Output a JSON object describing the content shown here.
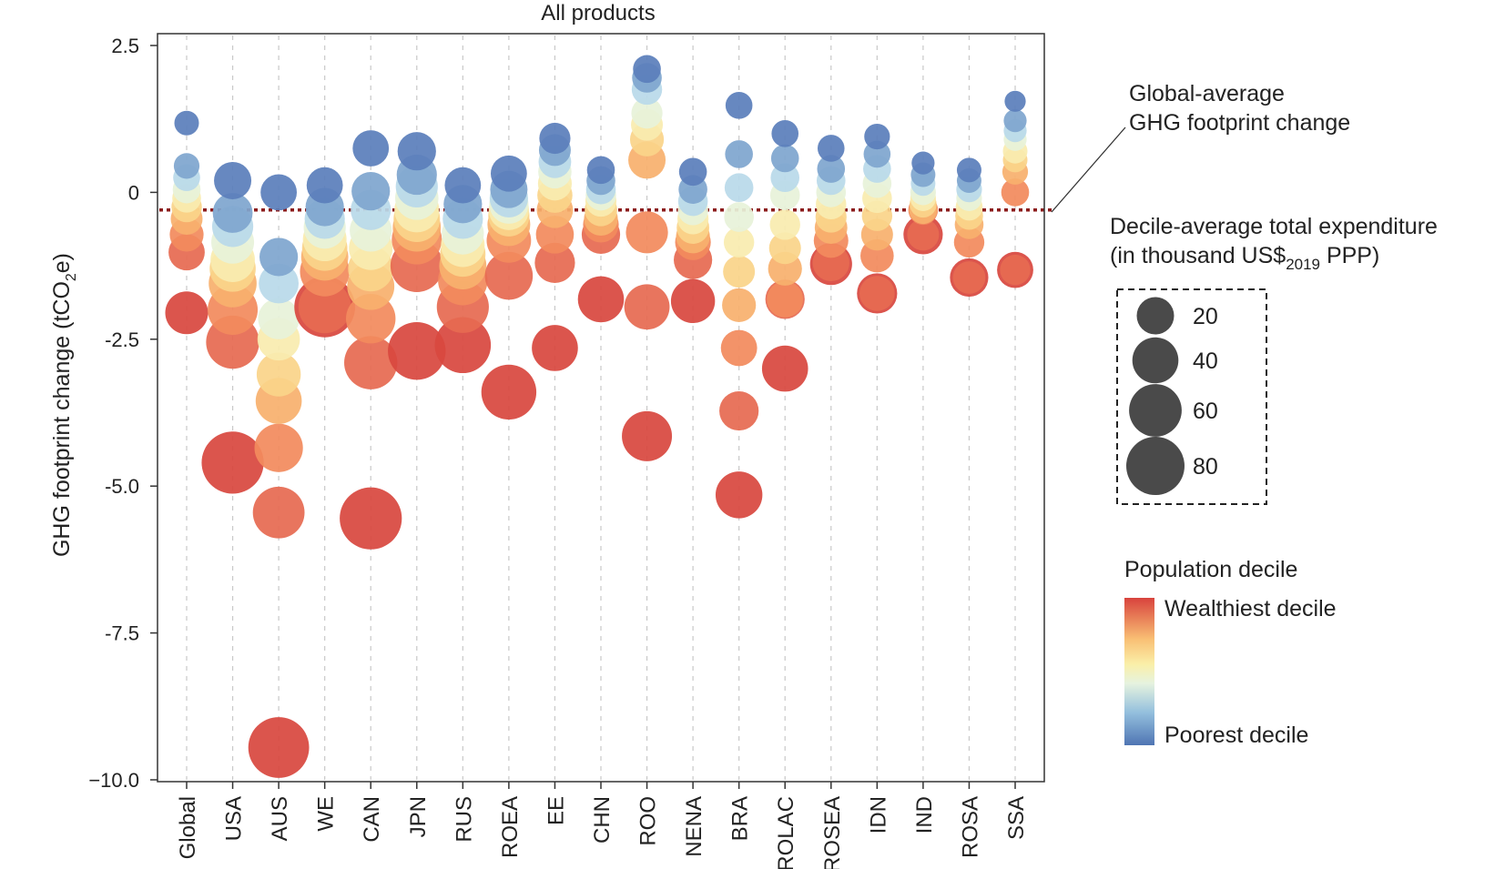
{
  "chart_data": {
    "type": "scatter",
    "title": "All products",
    "ylabel": "GHG footprint change (tCO",
    "ylabel_sub": "2",
    "ylabel_end": "e)",
    "ylim": [
      -10.0,
      2.5
    ],
    "yticks": [
      2.5,
      0,
      -2.5,
      -5.0,
      -7.5,
      -10.0
    ],
    "ytick_labels": [
      "2.5",
      "0",
      "-2.5",
      "-5.0",
      "-7.5",
      "−10.0"
    ],
    "categories": [
      "Global",
      "USA",
      "AUS",
      "WE",
      "CAN",
      "JPN",
      "RUS",
      "ROEA",
      "EE",
      "CHN",
      "ROO",
      "NENA",
      "BRA",
      "ROLAC",
      "ROSEA",
      "IDN",
      "IND",
      "ROSA",
      "SSA"
    ],
    "global_average": -0.3,
    "decile_colors": [
      "#5b7fbb",
      "#7fa6cf",
      "#b9d9ea",
      "#e7f2d9",
      "#f9ecaf",
      "#fad48a",
      "#f7b06e",
      "#f28b5e",
      "#e66a52",
      "#d8483f"
    ],
    "series": [
      {
        "category": "Global",
        "values": [
          1.18,
          0.45,
          0.25,
          0.05,
          -0.1,
          -0.25,
          -0.45,
          -0.72,
          -1.02,
          -2.05
        ],
        "expenditure": [
          3,
          4,
          5,
          6,
          7,
          9,
          11,
          14,
          18,
          32
        ]
      },
      {
        "category": "USA",
        "values": [
          0.2,
          -0.35,
          -0.58,
          -0.85,
          -1.15,
          -1.3,
          -1.55,
          -2.0,
          -2.55,
          -4.6
        ],
        "expenditure": [
          20,
          25,
          28,
          32,
          36,
          40,
          45,
          52,
          62,
          95
        ]
      },
      {
        "category": "AUS",
        "values": [
          0.0,
          -1.1,
          -1.55,
          -2.15,
          -2.5,
          -3.1,
          -3.55,
          -4.35,
          -5.45,
          -9.45
        ],
        "expenditure": [
          18,
          22,
          25,
          28,
          31,
          35,
          40,
          47,
          57,
          90
        ]
      },
      {
        "category": "WE",
        "values": [
          0.12,
          -0.25,
          -0.45,
          -0.6,
          -0.8,
          -0.95,
          -1.1,
          -1.35,
          -1.95,
          -1.95
        ],
        "expenditure": [
          18,
          22,
          26,
          30,
          34,
          38,
          43,
          50,
          60,
          90
        ]
      },
      {
        "category": "CAN",
        "values": [
          0.75,
          0.02,
          -0.3,
          -0.65,
          -0.95,
          -1.3,
          -1.6,
          -2.15,
          -2.9,
          -5.55
        ],
        "expenditure": [
          18,
          22,
          26,
          30,
          34,
          38,
          43,
          50,
          62,
          95
        ]
      },
      {
        "category": "JPN",
        "values": [
          0.7,
          0.3,
          0.1,
          -0.1,
          -0.3,
          -0.45,
          -0.6,
          -0.8,
          -1.25,
          -2.7
        ],
        "expenditure": [
          22,
          26,
          30,
          33,
          37,
          41,
          46,
          52,
          60,
          78
        ]
      },
      {
        "category": "RUS",
        "values": [
          0.12,
          -0.2,
          -0.45,
          -0.7,
          -0.9,
          -1.05,
          -1.25,
          -1.5,
          -1.95,
          -2.6
        ],
        "expenditure": [
          18,
          22,
          26,
          30,
          34,
          38,
          43,
          50,
          58,
          72
        ]
      },
      {
        "category": "ROEA",
        "values": [
          0.32,
          0.05,
          -0.1,
          -0.2,
          -0.3,
          -0.4,
          -0.55,
          -0.82,
          -1.42,
          -3.4
        ],
        "expenditure": [
          18,
          20,
          22,
          24,
          26,
          28,
          32,
          36,
          45,
          68
        ]
      },
      {
        "category": "EE",
        "values": [
          0.92,
          0.72,
          0.52,
          0.35,
          0.15,
          -0.05,
          -0.3,
          -0.72,
          -1.2,
          -2.65
        ],
        "expenditure": [
          10,
          11,
          12,
          13,
          14,
          16,
          18,
          21,
          26,
          40
        ]
      },
      {
        "category": "CHN",
        "values": [
          0.38,
          0.2,
          0.05,
          -0.05,
          -0.15,
          -0.3,
          -0.45,
          -0.55,
          -0.72,
          -1.82
        ],
        "expenditure": [
          6,
          7,
          8,
          9,
          10,
          12,
          14,
          17,
          22,
          40
        ]
      },
      {
        "category": "ROO",
        "values": [
          2.1,
          1.95,
          1.75,
          1.35,
          1.15,
          0.9,
          0.55,
          -0.68,
          -1.95,
          -4.15
        ],
        "expenditure": [
          6,
          8,
          9,
          10,
          11,
          14,
          20,
          30,
          38,
          52
        ]
      },
      {
        "category": "NENA",
        "values": [
          0.35,
          0.05,
          -0.15,
          -0.3,
          -0.45,
          -0.6,
          -0.75,
          -0.85,
          -1.15,
          -1.85
        ],
        "expenditure": [
          6,
          7,
          8,
          9,
          10,
          12,
          14,
          17,
          22,
          35
        ]
      },
      {
        "category": "BRA",
        "values": [
          1.48,
          0.65,
          0.08,
          -0.42,
          -0.85,
          -1.35,
          -1.92,
          -2.65,
          -3.72,
          -5.15
        ],
        "expenditure": [
          5,
          6,
          7,
          8,
          9,
          11,
          14,
          18,
          24,
          42
        ]
      },
      {
        "category": "ROLAC",
        "values": [
          1.0,
          0.58,
          0.25,
          -0.05,
          -0.55,
          -0.95,
          -1.3,
          -1.82,
          -1.82,
          -3.0
        ],
        "expenditure": [
          5,
          6,
          7,
          8,
          9,
          11,
          14,
          18,
          24,
          40
        ]
      },
      {
        "category": "ROSEA",
        "values": [
          0.75,
          0.4,
          0.2,
          0.0,
          -0.2,
          -0.42,
          -0.6,
          -0.82,
          -1.2,
          -1.22
        ],
        "expenditure": [
          5,
          6,
          7,
          8,
          9,
          10,
          12,
          15,
          19,
          30
        ]
      },
      {
        "category": "IDN",
        "values": [
          0.95,
          0.65,
          0.4,
          0.15,
          -0.1,
          -0.4,
          -0.72,
          -1.08,
          -1.72,
          -1.72
        ],
        "expenditure": [
          4,
          5,
          6,
          7,
          8,
          9,
          11,
          13,
          16,
          26
        ]
      },
      {
        "category": "IND",
        "values": [
          0.5,
          0.3,
          0.15,
          0.0,
          -0.1,
          -0.2,
          -0.3,
          -0.3,
          -0.72,
          -0.72
        ],
        "expenditure": [
          2,
          3,
          3,
          4,
          4,
          5,
          6,
          8,
          11,
          24
        ]
      },
      {
        "category": "ROSA",
        "values": [
          0.38,
          0.2,
          0.05,
          -0.1,
          -0.25,
          -0.4,
          -0.55,
          -0.85,
          -1.45,
          -1.45
        ],
        "expenditure": [
          3,
          3,
          4,
          4,
          5,
          6,
          7,
          9,
          12,
          22
        ]
      },
      {
        "category": "SSA",
        "values": [
          1.55,
          1.22,
          1.05,
          0.9,
          0.7,
          0.55,
          0.35,
          0.0,
          -1.32,
          -1.32
        ],
        "expenditure": [
          1,
          2,
          2,
          2,
          3,
          3,
          4,
          6,
          9,
          18
        ]
      }
    ]
  },
  "annotation": {
    "line1": "Global-average",
    "line2": "GHG footprint change"
  },
  "size_legend": {
    "title_line1": "Decile-average total expenditure",
    "title_line2_pre": "(in thousand US$",
    "title_line2_sub": "2019",
    "title_line2_post": " PPP)",
    "values": [
      20,
      40,
      60,
      80
    ],
    "labels": [
      "20",
      "40",
      "60",
      "80"
    ],
    "color": "#4a4a4a"
  },
  "color_legend": {
    "title": "Population decile",
    "top_label": "Wealthiest decile",
    "bottom_label": "Poorest decile"
  }
}
